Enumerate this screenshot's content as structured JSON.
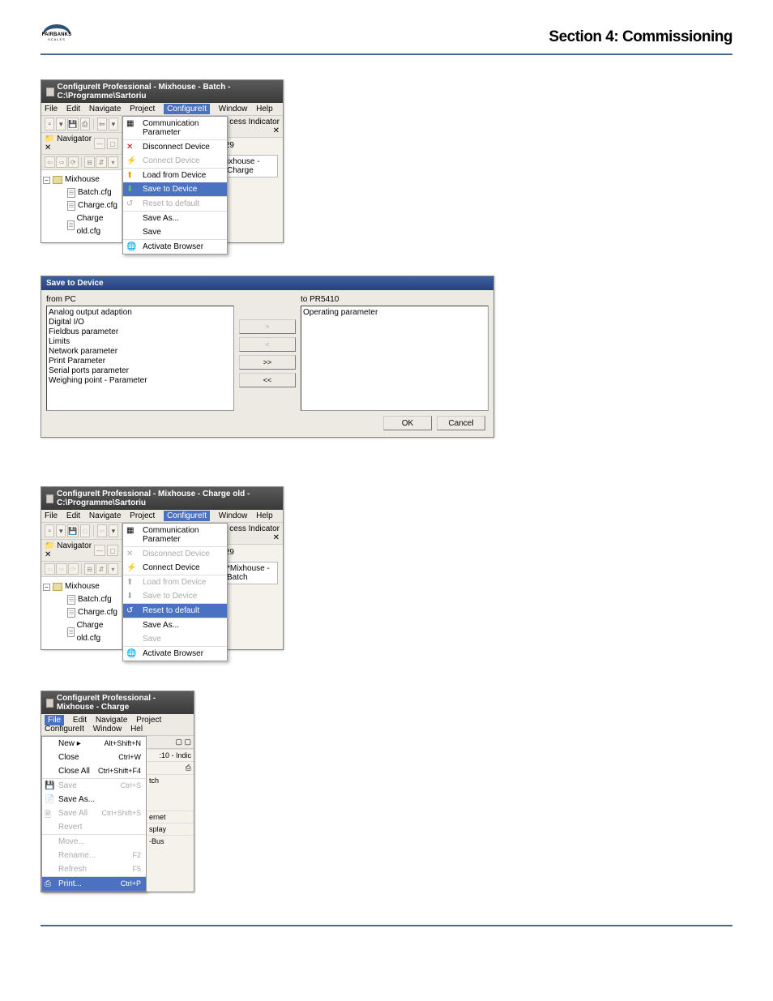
{
  "header": {
    "section": "Section 4: Commissioning",
    "logo_text": "FAIRBANKS",
    "logo_sub": "SCALES"
  },
  "win1": {
    "title": "ConfigureIt Professional - Mixhouse - Batch - C:\\Programme\\Sartoriu",
    "menus": [
      "File",
      "Edit",
      "Navigate",
      "Project",
      "ConfigureIt",
      "Window",
      "Help"
    ],
    "menu_selected": "ConfigureIt",
    "nav_label": "Navigator",
    "tree_root": "Mixhouse",
    "tree_items": [
      "Batch.cfg",
      "Charge.cfg",
      "Charge old.cfg"
    ],
    "dd": [
      "Communication Parameter",
      "Disconnect Device",
      "Connect Device",
      "Load from Device",
      "Save to Device",
      "Reset to default",
      "Save As...",
      "Save",
      "Activate Browser"
    ],
    "dd_selected": "Save to Device",
    "rhdr": "cess Indicator",
    "rval": ".29",
    "rbox": "ixhouse - Charge"
  },
  "dlg": {
    "title": "Save to Device",
    "left_lbl": "from PC",
    "right_lbl": "to PR5410",
    "left_items": [
      "Analog output adaption",
      "Digital I/O",
      "Fieldbus parameter",
      "Limits",
      "Network parameter",
      "Print Parameter",
      "Serial ports parameter",
      "Weighing point - Parameter"
    ],
    "right_items": [
      "Operating parameter"
    ],
    "btns": [
      ">",
      "<",
      ">>",
      "<<"
    ],
    "ok": "OK",
    "cancel": "Cancel"
  },
  "win3": {
    "title": "ConfigureIt Professional - Mixhouse - Charge old - C:\\Programme\\Sartoriu",
    "menus": [
      "File",
      "Edit",
      "Navigate",
      "Project",
      "ConfigureIt",
      "Window",
      "Help"
    ],
    "menu_selected": "ConfigureIt",
    "nav_label": "Navigator",
    "tree_root": "Mixhouse",
    "tree_items": [
      "Batch.cfg",
      "Charge.cfg",
      "Charge old.cfg"
    ],
    "dd": [
      "Communication Parameter",
      "Disconnect Device",
      "Connect Device",
      "Load from Device",
      "Save to Device",
      "Reset to default",
      "Save As...",
      "Save",
      "Activate Browser"
    ],
    "dd_selected": "Reset to default",
    "rhdr": "cess Indicator",
    "rval": ".29",
    "rbox": "*Mixhouse - Batch"
  },
  "fmenu": {
    "title": "ConfigureIt Professional - Mixhouse - Charge",
    "menus": [
      "File",
      "Edit",
      "Navigate",
      "Project",
      "ConfigureIt",
      "Window",
      "Hel"
    ],
    "menu_selected": "File",
    "items": [
      {
        "l": "New",
        "k": "Alt+Shift+N",
        "arrow": true
      },
      {
        "l": "Close",
        "k": "Ctrl+W"
      },
      {
        "l": "Close All",
        "k": "Ctrl+Shift+F4"
      },
      {
        "l": "Save",
        "k": "Ctrl+S",
        "dis": true,
        "sep": true,
        "ico": "save"
      },
      {
        "l": "Save As...",
        "k": "",
        "ico": "saveas"
      },
      {
        "l": "Save All",
        "k": "Ctrl+Shift+S",
        "dis": true,
        "ico": "saveall"
      },
      {
        "l": "Revert",
        "k": "",
        "dis": true
      },
      {
        "l": "Move...",
        "k": "",
        "dis": true,
        "sep": true
      },
      {
        "l": "Rename...",
        "k": "F2",
        "dis": true
      },
      {
        "l": "Refresh",
        "k": "F5",
        "dis": true
      },
      {
        "l": "Print...",
        "k": "Ctrl+P",
        "sel": true,
        "sep": true,
        "ico": "print"
      }
    ],
    "right": [
      ":10 - Indic",
      "tch",
      "ernet",
      "splay",
      "-Bus"
    ]
  }
}
